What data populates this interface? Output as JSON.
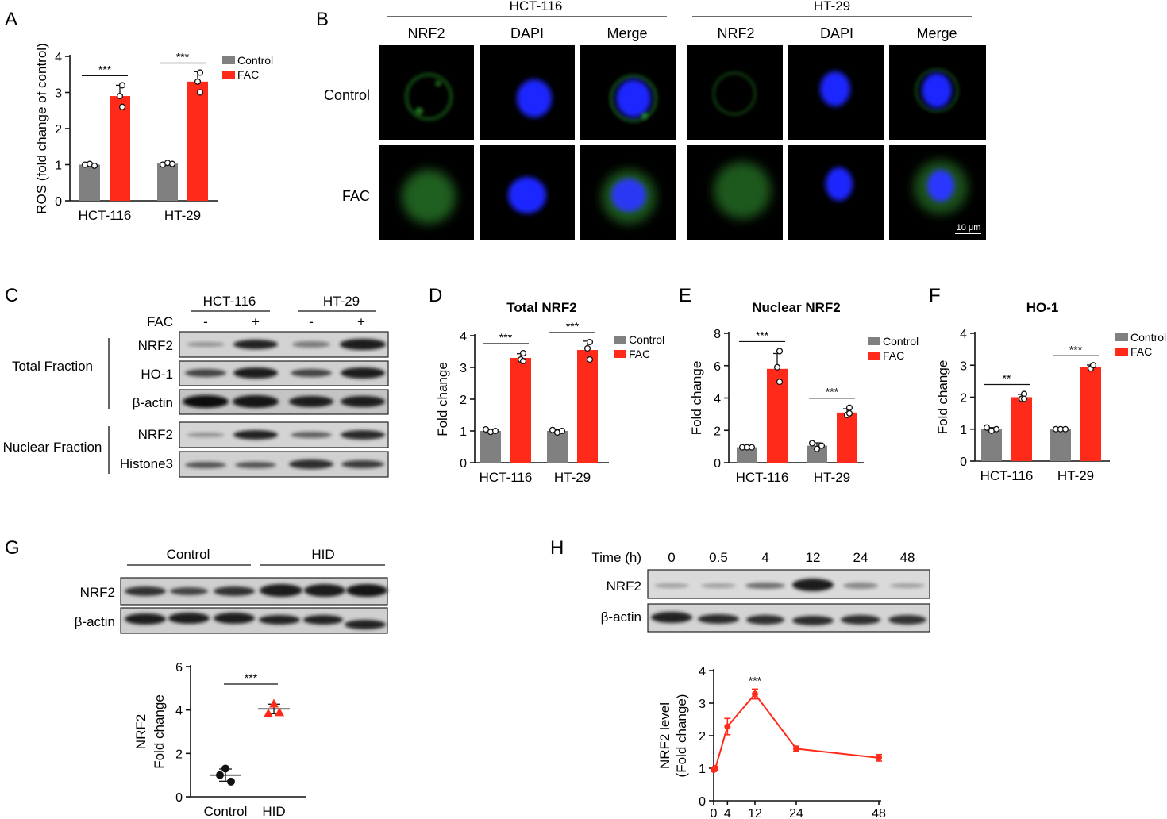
{
  "colors": {
    "control": "#808080",
    "fac": "#ff2a1a",
    "hid": "#ff2a1a",
    "dapi": "#1e2bff",
    "nrf2": "#2e8b2e"
  },
  "panel_letters": [
    "A",
    "B",
    "C",
    "D",
    "E",
    "F",
    "G",
    "H"
  ],
  "panelB": {
    "groups": [
      "HCT-116",
      "HT-29"
    ],
    "columns": [
      "NRF2",
      "DAPI",
      "Merge",
      "NRF2",
      "DAPI",
      "Merge"
    ],
    "rows": [
      "Control",
      "FAC"
    ],
    "scale_bar": "10 μm"
  },
  "panelC": {
    "groups": [
      "HCT-116",
      "HT-29"
    ],
    "fac_label": "FAC",
    "fac_signs": [
      "-",
      "+",
      "-",
      "+"
    ],
    "sections": [
      {
        "label": "Total Fraction",
        "bands": [
          "NRF2",
          "HO-1",
          "β-actin"
        ]
      },
      {
        "label": "Nuclear Fraction",
        "bands": [
          "NRF2",
          "Histone3"
        ]
      }
    ]
  },
  "panelG": {
    "groups": [
      "Control",
      "HID"
    ],
    "bands": [
      "NRF2",
      "β-actin"
    ]
  },
  "panelH": {
    "time_label": "Time (h)",
    "times": [
      "0",
      "0.5",
      "4",
      "12",
      "24",
      "48"
    ],
    "bands": [
      "NRF2",
      "β-actin"
    ]
  },
  "chart_data": [
    {
      "id": "A",
      "type": "bar",
      "title": "",
      "ylabel": "ROS (fold change of control)",
      "categories": [
        "HCT-116",
        "HT-29"
      ],
      "legend": [
        "Control",
        "FAC"
      ],
      "ylim": [
        0,
        4
      ],
      "yticks": [
        "0",
        "1",
        "2",
        "3",
        "4"
      ],
      "series": [
        {
          "name": "Control",
          "values": [
            1.0,
            1.03
          ],
          "points": [
            [
              1.0,
              1.02,
              0.97
            ],
            [
              1.0,
              1.05,
              1.02
            ]
          ]
        },
        {
          "name": "FAC",
          "values": [
            2.9,
            3.3
          ],
          "points": [
            [
              3.2,
              2.9,
              2.6
            ],
            [
              3.55,
              3.3,
              3.0
            ]
          ]
        }
      ],
      "significance": [
        "***",
        "***"
      ]
    },
    {
      "id": "D",
      "type": "bar",
      "title": "Total NRF2",
      "ylabel": "Fold change",
      "categories": [
        "HCT-116",
        "HT-29"
      ],
      "legend": [
        "Control",
        "FAC"
      ],
      "ylim": [
        0,
        4
      ],
      "yticks": [
        "0",
        "1",
        "2",
        "3",
        "4"
      ],
      "series": [
        {
          "name": "Control",
          "values": [
            1.0,
            1.0
          ],
          "points": [
            [
              1.05,
              0.97,
              1.0
            ],
            [
              1.03,
              0.95,
              1.0
            ]
          ]
        },
        {
          "name": "FAC",
          "values": [
            3.3,
            3.55
          ],
          "points": [
            [
              3.45,
              3.25,
              3.2
            ],
            [
              3.8,
              3.6,
              3.25
            ]
          ]
        }
      ],
      "significance": [
        "***",
        "***"
      ]
    },
    {
      "id": "E",
      "type": "bar",
      "title": "Nuclear NRF2",
      "ylabel": "Fold change",
      "categories": [
        "HCT-116",
        "HT-29"
      ],
      "legend": [
        "Control",
        "FAC"
      ],
      "ylim": [
        0,
        8
      ],
      "yticks": [
        "0",
        "2",
        "4",
        "6",
        "8"
      ],
      "series": [
        {
          "name": "Control",
          "values": [
            0.95,
            1.05
          ],
          "points": [
            [
              0.95,
              0.95,
              0.95
            ],
            [
              1.2,
              0.85,
              1.05
            ]
          ]
        },
        {
          "name": "FAC",
          "values": [
            5.8,
            3.1
          ],
          "points": [
            [
              6.9,
              5.9,
              5.0
            ],
            [
              3.4,
              2.95,
              3.05
            ]
          ]
        }
      ],
      "significance": [
        "***",
        "***"
      ]
    },
    {
      "id": "F",
      "type": "bar",
      "title": "HO-1",
      "ylabel": "Fold change",
      "categories": [
        "HCT-116",
        "HT-29"
      ],
      "legend": [
        "Control",
        "FAC"
      ],
      "ylim": [
        0,
        4
      ],
      "yticks": [
        "0",
        "1",
        "2",
        "3",
        "4"
      ],
      "series": [
        {
          "name": "Control",
          "values": [
            1.0,
            1.0
          ],
          "points": [
            [
              1.05,
              0.95,
              1.0
            ],
            [
              1.0,
              1.0,
              1.0
            ]
          ]
        },
        {
          "name": "FAC",
          "values": [
            2.0,
            2.95
          ],
          "points": [
            [
              2.1,
              1.95,
              1.95
            ],
            [
              3.0,
              2.9,
              3.0
            ]
          ]
        }
      ],
      "significance": [
        "**",
        "***"
      ]
    },
    {
      "id": "G",
      "type": "scatter",
      "ylabel_lines": [
        "NRF2",
        "Fold change"
      ],
      "categories": [
        "Control",
        "HID"
      ],
      "ylim": [
        0,
        6
      ],
      "yticks": [
        "0",
        "2",
        "4",
        "6"
      ],
      "means": [
        1.0,
        4.05
      ],
      "sem": [
        0.28,
        0.22
      ],
      "points": [
        [
          1.3,
          1.0,
          0.7
        ],
        [
          4.3,
          3.85,
          3.9
        ]
      ],
      "significance": "***"
    },
    {
      "id": "H",
      "type": "line",
      "ylabel_lines": [
        "NRF2 level",
        "(Fold change)"
      ],
      "x": [
        0,
        0.5,
        4,
        12,
        24,
        48
      ],
      "xticks": [
        "0",
        "4",
        "12",
        "24",
        "48"
      ],
      "y": [
        0.95,
        1.0,
        2.28,
        3.28,
        1.6,
        1.32
      ],
      "err": [
        0.05,
        0.05,
        0.25,
        0.15,
        0.08,
        0.1
      ],
      "ylim": [
        0,
        4
      ],
      "yticks": [
        "0",
        "1",
        "2",
        "3",
        "4"
      ],
      "significance": "***"
    }
  ]
}
